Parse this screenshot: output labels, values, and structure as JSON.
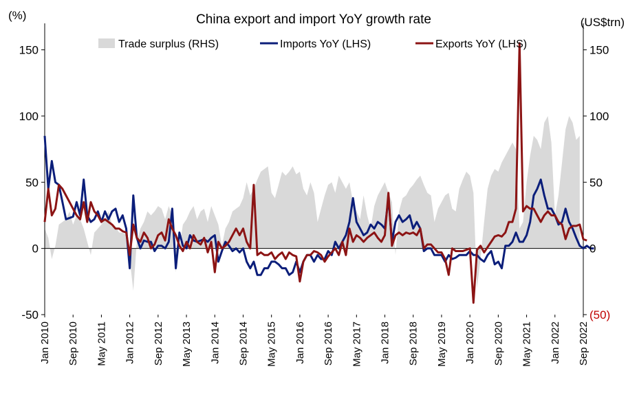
{
  "chart_data": {
    "type": "line",
    "title": "China export and import YoY growth rate",
    "left_axis_unit": "(%)",
    "right_axis_unit": "(US$trn)",
    "ylim_left": [
      -50,
      170
    ],
    "ylim_right": [
      -50,
      170
    ],
    "yticks_left": [
      "150",
      "100",
      "50",
      "0",
      "-50"
    ],
    "yticks_right": [
      "150",
      "100",
      "50",
      "0",
      "(50)"
    ],
    "yticks_values": [
      150,
      100,
      50,
      0,
      -50
    ],
    "x_tick_labels": [
      "Jan 2010",
      "Sep 2010",
      "May 2011",
      "Jan 2012",
      "Sep 2012",
      "May 2013",
      "Jan 2014",
      "Sep 2014",
      "May 2015",
      "Jan 2016",
      "Sep 2016",
      "May 2017",
      "Jan 2018",
      "Sep 2018",
      "May 2019",
      "Jan 2020",
      "Sep 2020",
      "May 2021",
      "Jan 2022",
      "Sep 2022"
    ],
    "x_start": "2010-01",
    "months": 153,
    "grid": false,
    "legend_placement": "top",
    "series": [
      {
        "name": "Trade surplus (RHS)",
        "kind": "area",
        "color": "#d9d9d9",
        "values": [
          15,
          8,
          -8,
          2,
          18,
          20,
          22,
          28,
          18,
          25,
          22,
          15,
          5,
          -5,
          12,
          15,
          18,
          22,
          28,
          18,
          16,
          12,
          12,
          10,
          -8,
          -32,
          5,
          15,
          20,
          28,
          25,
          28,
          32,
          30,
          22,
          32,
          25,
          -18,
          0,
          18,
          22,
          28,
          32,
          22,
          28,
          30,
          20,
          32,
          25,
          18,
          2,
          15,
          20,
          28,
          30,
          32,
          38,
          50,
          40,
          45,
          52,
          58,
          60,
          62,
          42,
          38,
          48,
          58,
          55,
          58,
          62,
          56,
          58,
          45,
          40,
          50,
          42,
          20,
          30,
          40,
          48,
          50,
          42,
          55,
          50,
          45,
          50,
          35,
          28,
          22,
          40,
          25,
          15,
          32,
          40,
          45,
          50,
          42,
          35,
          -5,
          28,
          38,
          40,
          45,
          48,
          52,
          55,
          48,
          42,
          40,
          20,
          30,
          35,
          40,
          42,
          30,
          28,
          45,
          52,
          58,
          55,
          42,
          -30,
          -8,
          20,
          45,
          55,
          60,
          58,
          65,
          70,
          75,
          80,
          75,
          15,
          20,
          50,
          70,
          85,
          82,
          75,
          95,
          100,
          80,
          25,
          40,
          65,
          90,
          100,
          95,
          82,
          85
        ]
      },
      {
        "name": "Imports YoY (LHS)",
        "kind": "line",
        "color": "#0b1e7a",
        "values": [
          85,
          45,
          66,
          50,
          48,
          35,
          22,
          23,
          24,
          35,
          25,
          52,
          25,
          20,
          22,
          28,
          20,
          28,
          22,
          28,
          30,
          20,
          25,
          15,
          -15,
          40,
          8,
          0,
          6,
          5,
          5,
          -2,
          2,
          2,
          0,
          5,
          30,
          -15,
          12,
          2,
          0,
          10,
          6,
          5,
          6,
          7,
          5,
          8,
          10,
          -10,
          -2,
          5,
          2,
          -2,
          0,
          -3,
          0,
          -10,
          -15,
          -10,
          -20,
          -20,
          -15,
          -15,
          -10,
          -10,
          -12,
          -15,
          -15,
          -20,
          -18,
          -10,
          -18,
          -10,
          -5,
          -5,
          -10,
          -5,
          -8,
          -8,
          -2,
          -5,
          5,
          0,
          5,
          10,
          20,
          38,
          20,
          15,
          10,
          12,
          18,
          15,
          20,
          18,
          15,
          38,
          5,
          20,
          25,
          20,
          22,
          25,
          15,
          20,
          15,
          -2,
          0,
          0,
          -5,
          -5,
          -5,
          -10,
          -5,
          -8,
          -7,
          -5,
          -5,
          -5,
          -2,
          -5,
          -5,
          -8,
          -10,
          -5,
          -2,
          -12,
          -10,
          -15,
          2,
          2,
          5,
          12,
          5,
          5,
          10,
          20,
          40,
          45,
          52,
          40,
          30,
          30,
          25,
          18,
          20,
          30,
          20,
          15,
          8,
          2,
          0,
          2,
          0,
          0
        ]
      },
      {
        "name": "Exports YoY (LHS)",
        "kind": "line",
        "color": "#8c1414",
        "values": [
          20,
          45,
          25,
          30,
          48,
          45,
          40,
          35,
          30,
          25,
          22,
          35,
          20,
          35,
          28,
          25,
          20,
          22,
          20,
          18,
          15,
          15,
          13,
          12,
          -5,
          18,
          8,
          5,
          12,
          8,
          0,
          3,
          10,
          12,
          6,
          22,
          15,
          10,
          2,
          -2,
          5,
          0,
          10,
          5,
          3,
          8,
          -3,
          5,
          -18,
          5,
          0,
          2,
          5,
          10,
          15,
          10,
          15,
          5,
          0,
          48,
          -5,
          -3,
          -5,
          -5,
          -3,
          -8,
          -5,
          -3,
          -8,
          -3,
          -5,
          -6,
          -25,
          -10,
          -5,
          -5,
          -2,
          -3,
          -5,
          -10,
          -6,
          -3,
          0,
          -5,
          5,
          -5,
          15,
          5,
          10,
          8,
          5,
          8,
          10,
          12,
          8,
          5,
          10,
          42,
          2,
          10,
          12,
          10,
          12,
          11,
          12,
          10,
          15,
          0,
          3,
          3,
          0,
          -3,
          -3,
          -8,
          -20,
          0,
          -2,
          -2,
          -2,
          -1,
          0,
          -41,
          -1,
          2,
          -3,
          1,
          5,
          9,
          10,
          9,
          12,
          20,
          20,
          30,
          155,
          28,
          32,
          30,
          30,
          25,
          20,
          25,
          28,
          25,
          25,
          20,
          18,
          7,
          15,
          17,
          17,
          18,
          7,
          6
        ]
      }
    ]
  }
}
